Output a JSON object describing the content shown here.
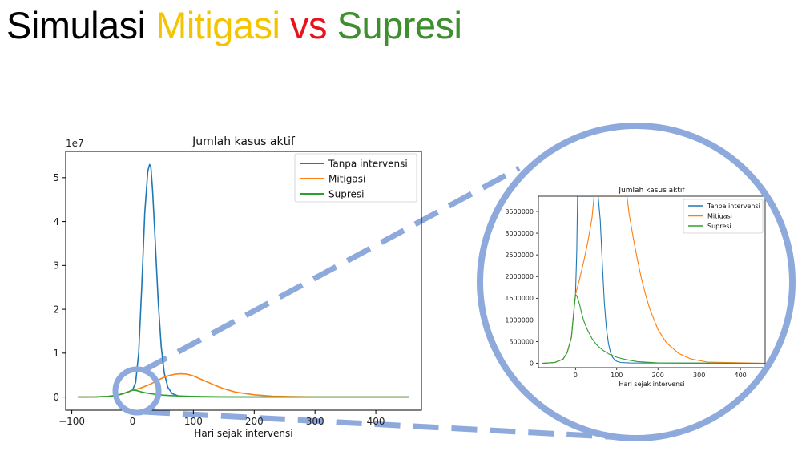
{
  "slide": {
    "title_parts": [
      {
        "text": "Simulasi ",
        "color": "#000000"
      },
      {
        "text": "Mitigasi",
        "color": "#F5C400"
      },
      {
        "text": " vs ",
        "color": "#E8141B"
      },
      {
        "text": "Supresi",
        "color": "#3F8F2F"
      }
    ]
  },
  "styles": {
    "magnifier_color": "#8EA9DB",
    "colors": {
      "tanpa": "#1f77b4",
      "mitigasi": "#ff7f0e",
      "supresi": "#2ca02c"
    }
  },
  "chart_data": [
    {
      "type": "line",
      "title": "Jumlah kasus aktif",
      "xlabel": "Hari sejak intervensi",
      "ylabel": "",
      "y_offset_label": "1e7",
      "xlim": [
        -110,
        475
      ],
      "ylim": [
        -0.3,
        5.6
      ],
      "x_ticks": [
        -100,
        0,
        100,
        200,
        300,
        400
      ],
      "x_tick_labels": [
        "−100",
        "0",
        "100",
        "200",
        "300",
        "400"
      ],
      "y_ticks": [
        0,
        1,
        2,
        3,
        4,
        5
      ],
      "y_tick_labels": [
        "0",
        "1",
        "2",
        "3",
        "4",
        "5"
      ],
      "legend": {
        "position": "upper right",
        "entries": [
          "Tanpa intervensi",
          "Mitigasi",
          "Supresi"
        ]
      },
      "series": [
        {
          "name": "Tanpa intervensi",
          "color_key": "tanpa",
          "x": [
            -90,
            -60,
            -40,
            -25,
            -15,
            -5,
            0,
            5,
            10,
            15,
            20,
            25,
            28,
            30,
            33,
            37,
            42,
            47,
            52,
            58,
            65,
            75,
            90,
            120,
            200,
            300,
            455
          ],
          "y": [
            0,
            0.003,
            0.015,
            0.04,
            0.08,
            0.13,
            0.16,
            0.33,
            1.0,
            2.5,
            4.2,
            5.15,
            5.3,
            5.25,
            4.7,
            3.6,
            2.2,
            1.15,
            0.55,
            0.22,
            0.08,
            0.025,
            0.008,
            0.002,
            0,
            0,
            0
          ]
        },
        {
          "name": "Mitigasi",
          "color_key": "mitigasi",
          "x": [
            -90,
            -60,
            -40,
            -25,
            -15,
            -5,
            0,
            10,
            20,
            30,
            40,
            50,
            60,
            70,
            80,
            90,
            100,
            110,
            120,
            135,
            150,
            170,
            200,
            230,
            260,
            300,
            455
          ],
          "y": [
            0,
            0.003,
            0.015,
            0.04,
            0.08,
            0.13,
            0.16,
            0.19,
            0.24,
            0.3,
            0.37,
            0.44,
            0.49,
            0.52,
            0.53,
            0.52,
            0.48,
            0.42,
            0.36,
            0.27,
            0.19,
            0.11,
            0.05,
            0.02,
            0.008,
            0.002,
            0
          ]
        },
        {
          "name": "Supresi",
          "color_key": "supresi",
          "x": [
            -90,
            -60,
            -40,
            -25,
            -15,
            -5,
            0,
            3,
            6,
            10,
            15,
            20,
            30,
            40,
            50,
            60,
            70,
            80,
            100,
            130,
            160,
            200,
            455
          ],
          "y": [
            0,
            0.003,
            0.015,
            0.04,
            0.08,
            0.13,
            0.158,
            0.155,
            0.148,
            0.135,
            0.115,
            0.098,
            0.075,
            0.057,
            0.044,
            0.035,
            0.028,
            0.022,
            0.014,
            0.007,
            0.003,
            0.001,
            0
          ]
        }
      ]
    },
    {
      "type": "line",
      "title": "Jumlah kasus aktif",
      "xlabel": "Hari sejak intervensi",
      "ylabel": "",
      "xlim": [
        -90,
        460
      ],
      "ylim": [
        -100000,
        3850000
      ],
      "x_ticks": [
        0,
        100,
        200,
        300,
        400
      ],
      "x_tick_labels": [
        "0",
        "100",
        "200",
        "300",
        "400"
      ],
      "y_ticks": [
        0,
        500000,
        1000000,
        1500000,
        2000000,
        2500000,
        3000000,
        3500000
      ],
      "y_tick_labels": [
        "0",
        "500000",
        "1000000",
        "1500000",
        "2000000",
        "2500000",
        "3000000",
        "3500000"
      ],
      "legend": {
        "position": "upper right",
        "entries": [
          "Tanpa intervensi",
          "Mitigasi",
          "Supresi"
        ]
      },
      "series": [
        {
          "name": "Tanpa intervensi",
          "color_key": "tanpa",
          "x": [
            -80,
            -50,
            -30,
            -20,
            -10,
            -5,
            0,
            3,
            5,
            55,
            60,
            65,
            70,
            75,
            80,
            85,
            90,
            95,
            100,
            110,
            130,
            460
          ],
          "y": [
            0,
            20000,
            100000,
            250000,
            600000,
            1100000,
            1580000,
            2600000,
            3850000,
            3850000,
            3300000,
            2300000,
            1400000,
            800000,
            450000,
            250000,
            140000,
            80000,
            45000,
            20000,
            8000,
            0
          ]
        },
        {
          "name": "Mitigasi",
          "color_key": "mitigasi",
          "x": [
            -80,
            -50,
            -30,
            -20,
            -10,
            -5,
            0,
            10,
            20,
            30,
            40,
            45,
            125,
            130,
            140,
            150,
            160,
            170,
            180,
            200,
            220,
            250,
            280,
            320,
            460
          ],
          "y": [
            0,
            20000,
            100000,
            250000,
            600000,
            1100000,
            1580000,
            1950000,
            2350000,
            2800000,
            3350000,
            3850000,
            3850000,
            3450000,
            2900000,
            2400000,
            1950000,
            1580000,
            1260000,
            780000,
            480000,
            230000,
            100000,
            30000,
            0
          ]
        },
        {
          "name": "Supresi",
          "color_key": "supresi",
          "x": [
            -80,
            -50,
            -30,
            -20,
            -10,
            -5,
            0,
            3,
            6,
            10,
            15,
            20,
            30,
            40,
            50,
            60,
            70,
            80,
            100,
            120,
            150,
            200,
            460
          ],
          "y": [
            0,
            20000,
            100000,
            250000,
            600000,
            1100000,
            1580000,
            1560000,
            1480000,
            1350000,
            1150000,
            980000,
            750000,
            570000,
            440000,
            350000,
            280000,
            220000,
            140000,
            90000,
            40000,
            10000,
            0
          ]
        }
      ]
    }
  ]
}
